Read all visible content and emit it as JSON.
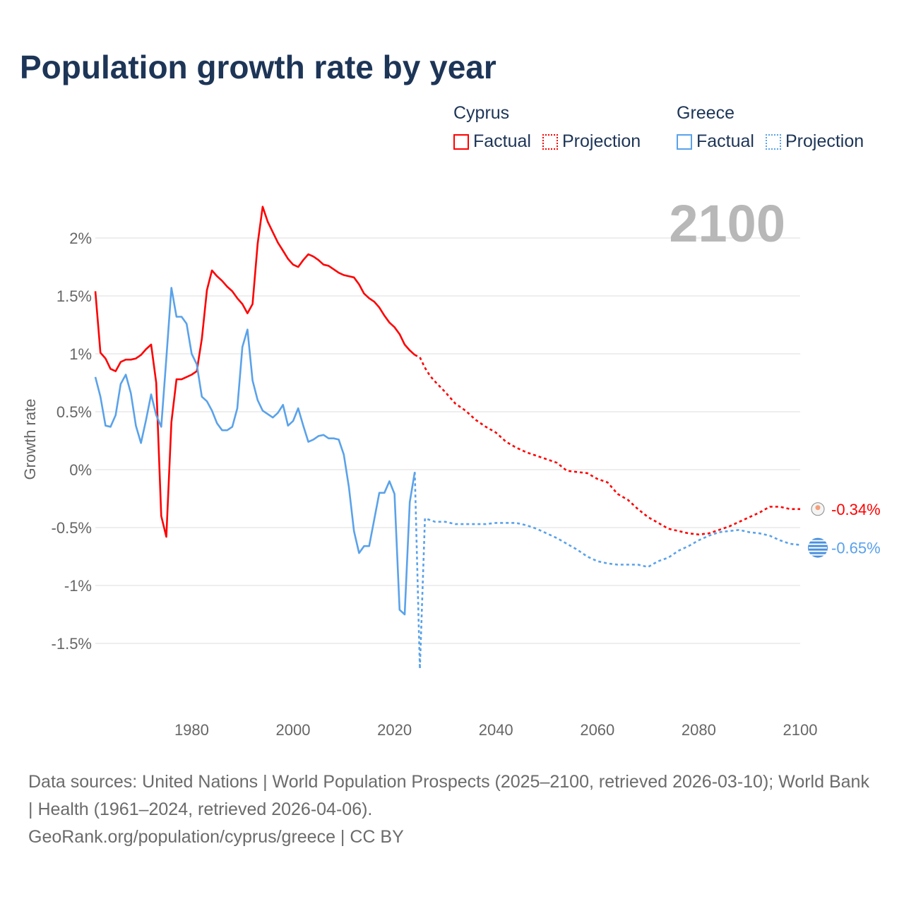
{
  "title": "Population growth rate by year",
  "legend": {
    "groups": [
      {
        "name": "Cyprus",
        "factual": "Factual",
        "projection": "Projection",
        "color": "#ff0000"
      },
      {
        "name": "Greece",
        "factual": "Factual",
        "projection": "Projection",
        "color": "#5aa2ea"
      }
    ]
  },
  "year_label": "2100",
  "footer": {
    "sources": "Data sources: United Nations | World Population Prospects (2025–2100, retrieved 2026-03-10); World Bank | Health (1961–2024, retrieved 2026-04-06).",
    "credit": "GeoRank.org/population/cyprus/greece | CC BY"
  },
  "chart_data": {
    "type": "line",
    "title": "Population growth rate by year",
    "xlabel": "",
    "ylabel": "Growth rate",
    "xlim": [
      1961,
      2100
    ],
    "ylim": [
      -2,
      2.4
    ],
    "grid": true,
    "x_ticks": [
      1980,
      2000,
      2020,
      2040,
      2060,
      2080,
      2100
    ],
    "y_ticks": [
      2,
      1.5,
      1,
      0.5,
      0,
      -0.5,
      -1,
      -1.5
    ],
    "y_tick_labels": [
      "2%",
      "1.5%",
      "1%",
      "0.5%",
      "0%",
      "-0.5%",
      "-1%",
      "-1.5%"
    ],
    "legend_position": "top-right",
    "series": [
      {
        "name": "Cyprus",
        "kind": "factual",
        "color": "#ff0000",
        "end_label": "-0.34%",
        "x": [
          1961,
          1962,
          1963,
          1964,
          1965,
          1966,
          1967,
          1968,
          1969,
          1970,
          1971,
          1972,
          1973,
          1974,
          1975,
          1976,
          1977,
          1978,
          1979,
          1980,
          1981,
          1982,
          1983,
          1984,
          1985,
          1986,
          1987,
          1988,
          1989,
          1990,
          1991,
          1992,
          1993,
          1994,
          1995,
          1996,
          1997,
          1998,
          1999,
          2000,
          2001,
          2002,
          2003,
          2004,
          2005,
          2006,
          2007,
          2008,
          2009,
          2010,
          2011,
          2012,
          2013,
          2014,
          2015,
          2016,
          2017,
          2018,
          2019,
          2020,
          2021,
          2022,
          2023,
          2024
        ],
        "y": [
          1.54,
          1.01,
          0.96,
          0.87,
          0.85,
          0.93,
          0.95,
          0.95,
          0.96,
          0.99,
          1.04,
          1.08,
          0.75,
          -0.4,
          -0.58,
          0.41,
          0.78,
          0.78,
          0.8,
          0.82,
          0.85,
          1.13,
          1.55,
          1.72,
          1.67,
          1.63,
          1.58,
          1.54,
          1.48,
          1.43,
          1.35,
          1.43,
          1.95,
          2.27,
          2.14,
          2.05,
          1.96,
          1.89,
          1.82,
          1.77,
          1.75,
          1.81,
          1.86,
          1.84,
          1.81,
          1.77,
          1.76,
          1.73,
          1.7,
          1.68,
          1.67,
          1.66,
          1.6,
          1.52,
          1.48,
          1.45,
          1.4,
          1.33,
          1.27,
          1.23,
          1.17,
          1.08,
          1.03,
          0.99
        ]
      },
      {
        "name": "Cyprus",
        "kind": "projection",
        "color": "#ff0000",
        "x": [
          2024,
          2025,
          2026,
          2027,
          2028,
          2030,
          2032,
          2034,
          2036,
          2038,
          2040,
          2042,
          2044,
          2046,
          2048,
          2050,
          2052,
          2054,
          2056,
          2058,
          2060,
          2062,
          2064,
          2066,
          2068,
          2070,
          2072,
          2074,
          2076,
          2078,
          2080,
          2082,
          2084,
          2086,
          2088,
          2090,
          2092,
          2094,
          2096,
          2098,
          2100
        ],
        "y": [
          0.99,
          0.97,
          0.88,
          0.81,
          0.76,
          0.67,
          0.57,
          0.51,
          0.43,
          0.37,
          0.32,
          0.24,
          0.19,
          0.15,
          0.12,
          0.09,
          0.06,
          -0.01,
          -0.02,
          -0.03,
          -0.08,
          -0.11,
          -0.21,
          -0.26,
          -0.34,
          -0.41,
          -0.46,
          -0.51,
          -0.53,
          -0.55,
          -0.56,
          -0.55,
          -0.52,
          -0.49,
          -0.45,
          -0.41,
          -0.37,
          -0.32,
          -0.32,
          -0.34,
          -0.34
        ]
      },
      {
        "name": "Greece",
        "kind": "factual",
        "color": "#5aa2ea",
        "end_label": "-0.65%",
        "x": [
          1961,
          1962,
          1963,
          1964,
          1965,
          1966,
          1967,
          1968,
          1969,
          1970,
          1971,
          1972,
          1973,
          1974,
          1975,
          1976,
          1977,
          1978,
          1979,
          1980,
          1981,
          1982,
          1983,
          1984,
          1985,
          1986,
          1987,
          1988,
          1989,
          1990,
          1991,
          1992,
          1993,
          1994,
          1995,
          1996,
          1997,
          1998,
          1999,
          2000,
          2001,
          2002,
          2003,
          2004,
          2005,
          2006,
          2007,
          2008,
          2009,
          2010,
          2011,
          2012,
          2013,
          2014,
          2015,
          2016,
          2017,
          2018,
          2019,
          2020,
          2021,
          2022,
          2023,
          2024
        ],
        "y": [
          0.8,
          0.63,
          0.38,
          0.37,
          0.47,
          0.74,
          0.82,
          0.66,
          0.38,
          0.23,
          0.43,
          0.65,
          0.47,
          0.37,
          0.96,
          1.57,
          1.32,
          1.32,
          1.26,
          1.0,
          0.91,
          0.63,
          0.59,
          0.51,
          0.4,
          0.34,
          0.34,
          0.37,
          0.53,
          1.06,
          1.21,
          0.77,
          0.6,
          0.51,
          0.48,
          0.45,
          0.49,
          0.56,
          0.38,
          0.42,
          0.53,
          0.38,
          0.24,
          0.26,
          0.29,
          0.3,
          0.27,
          0.27,
          0.26,
          0.13,
          -0.15,
          -0.53,
          -0.72,
          -0.66,
          -0.66,
          -0.43,
          -0.2,
          -0.2,
          -0.1,
          -0.21,
          -1.21,
          -1.25,
          -0.28,
          -0.02
        ]
      },
      {
        "name": "Greece",
        "kind": "projection",
        "color": "#5aa2ea",
        "x": [
          2024,
          2025,
          2026,
          2028,
          2030,
          2032,
          2034,
          2036,
          2038,
          2040,
          2042,
          2044,
          2046,
          2048,
          2050,
          2052,
          2054,
          2056,
          2058,
          2060,
          2062,
          2064,
          2066,
          2068,
          2070,
          2072,
          2074,
          2076,
          2078,
          2080,
          2082,
          2084,
          2086,
          2088,
          2090,
          2092,
          2094,
          2096,
          2098,
          2100
        ],
        "y": [
          -0.02,
          -1.72,
          -0.42,
          -0.45,
          -0.45,
          -0.47,
          -0.47,
          -0.47,
          -0.47,
          -0.46,
          -0.46,
          -0.46,
          -0.48,
          -0.51,
          -0.55,
          -0.59,
          -0.64,
          -0.69,
          -0.75,
          -0.79,
          -0.81,
          -0.82,
          -0.82,
          -0.82,
          -0.84,
          -0.79,
          -0.76,
          -0.7,
          -0.66,
          -0.61,
          -0.57,
          -0.54,
          -0.53,
          -0.52,
          -0.54,
          -0.55,
          -0.57,
          -0.61,
          -0.64,
          -0.65
        ]
      }
    ]
  }
}
